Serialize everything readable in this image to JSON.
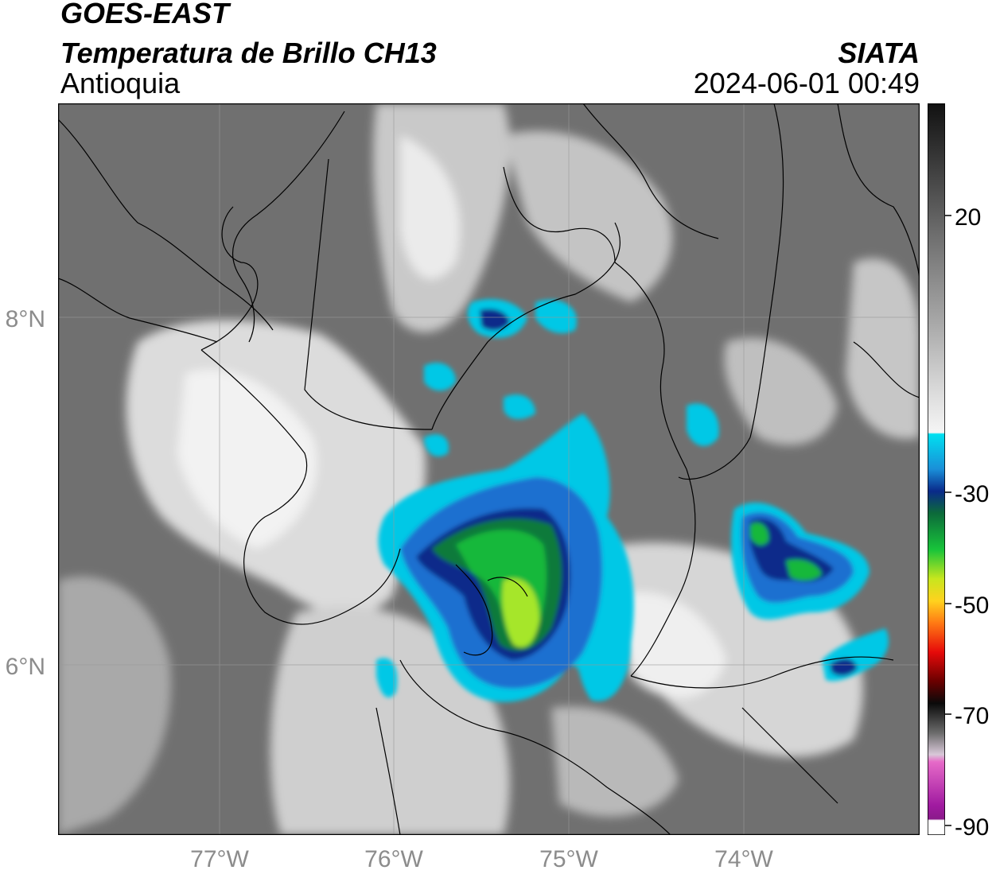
{
  "header": {
    "satellite": "GOES-EAST",
    "product": "Temperatura de Brillo CH13",
    "region": "Antioquia",
    "agency": "SIATA",
    "datetime": "2024-06-01 00:49"
  },
  "map": {
    "lat_labels": [
      "8°N",
      "6°N"
    ],
    "lon_labels": [
      "77°W",
      "76°W",
      "75°W",
      "74°W"
    ],
    "lon_range": [
      -77.95,
      -73.05
    ],
    "lat_range": [
      5.05,
      9.25
    ],
    "lat_ticks": [
      8,
      6
    ],
    "lon_ticks": [
      -77,
      -76,
      -75,
      -74
    ]
  },
  "colorbar": {
    "tick_labels": [
      "20",
      "-30",
      "-50",
      "-70",
      "-90"
    ],
    "tick_values": [
      20,
      -30,
      -50,
      -70,
      -90
    ],
    "range": [
      -90,
      45
    ]
  },
  "colors": {
    "land_cloudfree": "#6e6e6e",
    "warm_cloud": "#bdbdbd",
    "cold_cloud_cyan": "#00c8e6",
    "deep_blue": "#0a2a8a",
    "green": "#18b83a",
    "yellow_green": "#a6e62a"
  }
}
